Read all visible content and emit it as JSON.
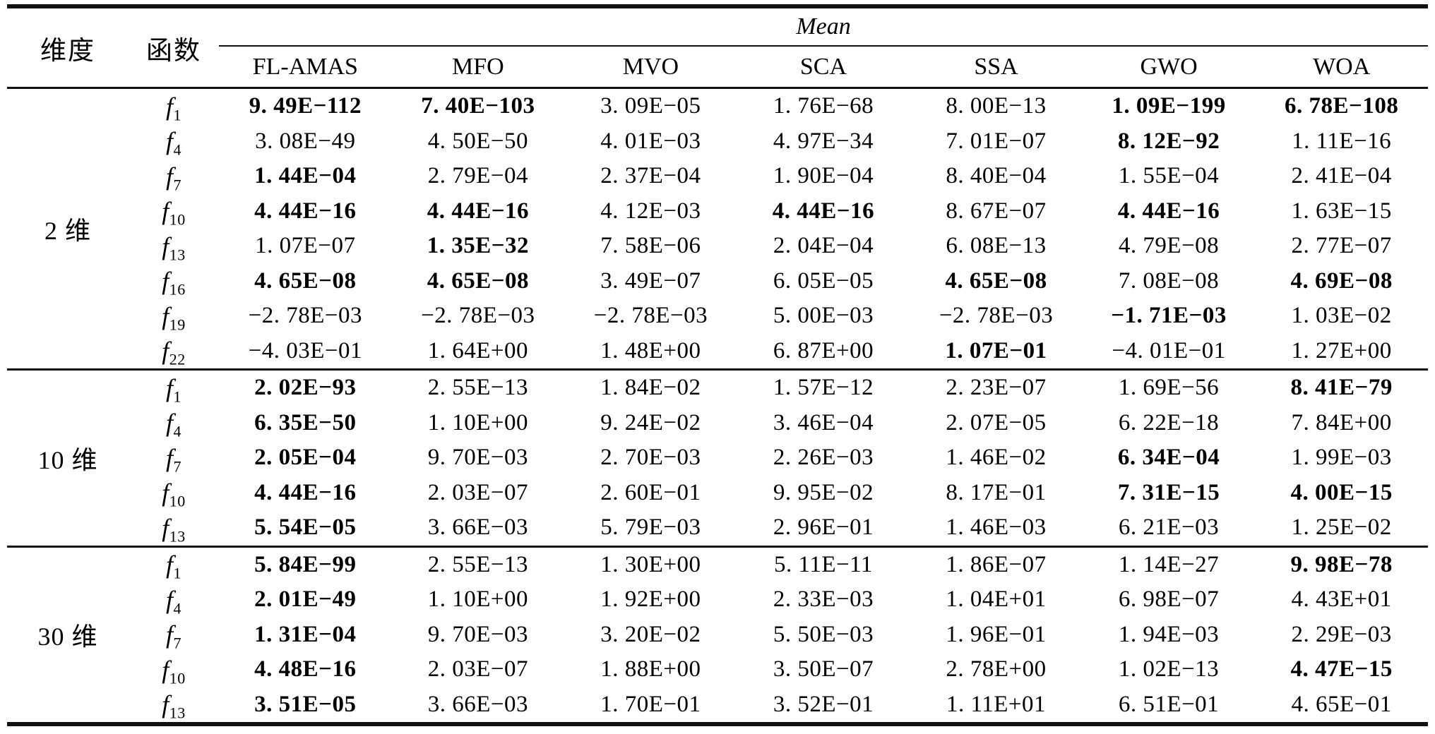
{
  "table": {
    "header": {
      "dimension_label": "维度",
      "function_label": "函数",
      "mean_label": "Mean",
      "algorithms": [
        "FL-AMAS",
        "MFO",
        "MVO",
        "SCA",
        "SSA",
        "GWO",
        "WOA"
      ]
    },
    "chart_data": {
      "type": "table",
      "title": "Mean",
      "row_groups": [
        "2 维",
        "10 维",
        "30 维"
      ],
      "columns": [
        "FL-AMAS",
        "MFO",
        "MVO",
        "SCA",
        "SSA",
        "GWO",
        "WOA"
      ]
    },
    "groups": [
      {
        "dimension": "2 维",
        "rows": [
          {
            "func_base": "f",
            "func_sub": "1",
            "values": [
              "9. 49E−112",
              "7. 40E−103",
              "3. 09E−05",
              "1. 76E−68",
              "8. 00E−13",
              "1. 09E−199",
              "6. 78E−108"
            ],
            "bold": [
              true,
              true,
              false,
              false,
              false,
              true,
              true
            ]
          },
          {
            "func_base": "f",
            "func_sub": "4",
            "values": [
              "3. 08E−49",
              "4. 50E−50",
              "4. 01E−03",
              "4. 97E−34",
              "7. 01E−07",
              "8. 12E−92",
              "1. 11E−16"
            ],
            "bold": [
              false,
              false,
              false,
              false,
              false,
              true,
              false
            ]
          },
          {
            "func_base": "f",
            "func_sub": "7",
            "values": [
              "1. 44E−04",
              "2. 79E−04",
              "2. 37E−04",
              "1. 90E−04",
              "8. 40E−04",
              "1. 55E−04",
              "2. 41E−04"
            ],
            "bold": [
              true,
              false,
              false,
              false,
              false,
              false,
              false
            ]
          },
          {
            "func_base": "f",
            "func_sub": "10",
            "values": [
              "4. 44E−16",
              "4. 44E−16",
              "4. 12E−03",
              "4. 44E−16",
              "8. 67E−07",
              "4. 44E−16",
              "1. 63E−15"
            ],
            "bold": [
              true,
              true,
              false,
              true,
              false,
              true,
              false
            ]
          },
          {
            "func_base": "f",
            "func_sub": "13",
            "values": [
              "1. 07E−07",
              "1. 35E−32",
              "7. 58E−06",
              "2. 04E−04",
              "6. 08E−13",
              "4. 79E−08",
              "2. 77E−07"
            ],
            "bold": [
              false,
              true,
              false,
              false,
              false,
              false,
              false
            ]
          },
          {
            "func_base": "f",
            "func_sub": "16",
            "values": [
              "4. 65E−08",
              "4. 65E−08",
              "3. 49E−07",
              "6. 05E−05",
              "4. 65E−08",
              "7. 08E−08",
              "4. 69E−08"
            ],
            "bold": [
              true,
              true,
              false,
              false,
              true,
              false,
              true
            ]
          },
          {
            "func_base": "f",
            "func_sub": "19",
            "values": [
              "−2. 78E−03",
              "−2. 78E−03",
              "−2. 78E−03",
              "5. 00E−03",
              "−2. 78E−03",
              "−1. 71E−03",
              "1. 03E−02"
            ],
            "bold": [
              false,
              false,
              false,
              false,
              false,
              true,
              false
            ]
          },
          {
            "func_base": "f",
            "func_sub": "22",
            "values": [
              "−4. 03E−01",
              "1. 64E+00",
              "1. 48E+00",
              "6. 87E+00",
              "1. 07E−01",
              "−4. 01E−01",
              "1. 27E+00"
            ],
            "bold": [
              false,
              false,
              false,
              false,
              true,
              false,
              false
            ]
          }
        ]
      },
      {
        "dimension": "10 维",
        "rows": [
          {
            "func_base": "f",
            "func_sub": "1",
            "values": [
              "2. 02E−93",
              "2. 55E−13",
              "1. 84E−02",
              "1. 57E−12",
              "2. 23E−07",
              "1. 69E−56",
              "8. 41E−79"
            ],
            "bold": [
              true,
              false,
              false,
              false,
              false,
              false,
              true
            ]
          },
          {
            "func_base": "f",
            "func_sub": "4",
            "values": [
              "6. 35E−50",
              "1. 10E+00",
              "9. 24E−02",
              "3. 46E−04",
              "2. 07E−05",
              "6. 22E−18",
              "7. 84E+00"
            ],
            "bold": [
              true,
              false,
              false,
              false,
              false,
              false,
              false
            ]
          },
          {
            "func_base": "f",
            "func_sub": "7",
            "values": [
              "2. 05E−04",
              "9. 70E−03",
              "2. 70E−03",
              "2. 26E−03",
              "1. 46E−02",
              "6. 34E−04",
              "1. 99E−03"
            ],
            "bold": [
              true,
              false,
              false,
              false,
              false,
              true,
              false
            ]
          },
          {
            "func_base": "f",
            "func_sub": "10",
            "values": [
              "4. 44E−16",
              "2. 03E−07",
              "2. 60E−01",
              "9. 95E−02",
              "8. 17E−01",
              "7. 31E−15",
              "4. 00E−15"
            ],
            "bold": [
              true,
              false,
              false,
              false,
              false,
              true,
              true
            ]
          },
          {
            "func_base": "f",
            "func_sub": "13",
            "values": [
              "5. 54E−05",
              "3. 66E−03",
              "5. 79E−03",
              "2. 96E−01",
              "1. 46E−03",
              "6. 21E−03",
              "1. 25E−02"
            ],
            "bold": [
              true,
              false,
              false,
              false,
              false,
              false,
              false
            ]
          }
        ]
      },
      {
        "dimension": "30 维",
        "rows": [
          {
            "func_base": "f",
            "func_sub": "1",
            "values": [
              "5. 84E−99",
              "2. 55E−13",
              "1. 30E+00",
              "5. 11E−11",
              "1. 86E−07",
              "1. 14E−27",
              "9. 98E−78"
            ],
            "bold": [
              true,
              false,
              false,
              false,
              false,
              false,
              true
            ]
          },
          {
            "func_base": "f",
            "func_sub": "4",
            "values": [
              "2. 01E−49",
              "1. 10E+00",
              "1. 92E+00",
              "2. 33E−03",
              "1. 04E+01",
              "6. 98E−07",
              "4. 43E+01"
            ],
            "bold": [
              true,
              false,
              false,
              false,
              false,
              false,
              false
            ]
          },
          {
            "func_base": "f",
            "func_sub": "7",
            "values": [
              "1. 31E−04",
              "9. 70E−03",
              "3. 20E−02",
              "5. 50E−03",
              "1. 96E−01",
              "1. 94E−03",
              "2. 29E−03"
            ],
            "bold": [
              true,
              false,
              false,
              false,
              false,
              false,
              false
            ]
          },
          {
            "func_base": "f",
            "func_sub": "10",
            "values": [
              "4. 48E−16",
              "2. 03E−07",
              "1. 88E+00",
              "3. 50E−07",
              "2. 78E+00",
              "1. 02E−13",
              "4. 47E−15"
            ],
            "bold": [
              true,
              false,
              false,
              false,
              false,
              false,
              true
            ]
          },
          {
            "func_base": "f",
            "func_sub": "13",
            "values": [
              "3. 51E−05",
              "3. 66E−03",
              "1. 70E−01",
              "3. 52E−01",
              "1. 11E+01",
              "6. 51E−01",
              "4. 65E−01"
            ],
            "bold": [
              true,
              false,
              false,
              false,
              false,
              false,
              false
            ]
          }
        ]
      }
    ]
  }
}
